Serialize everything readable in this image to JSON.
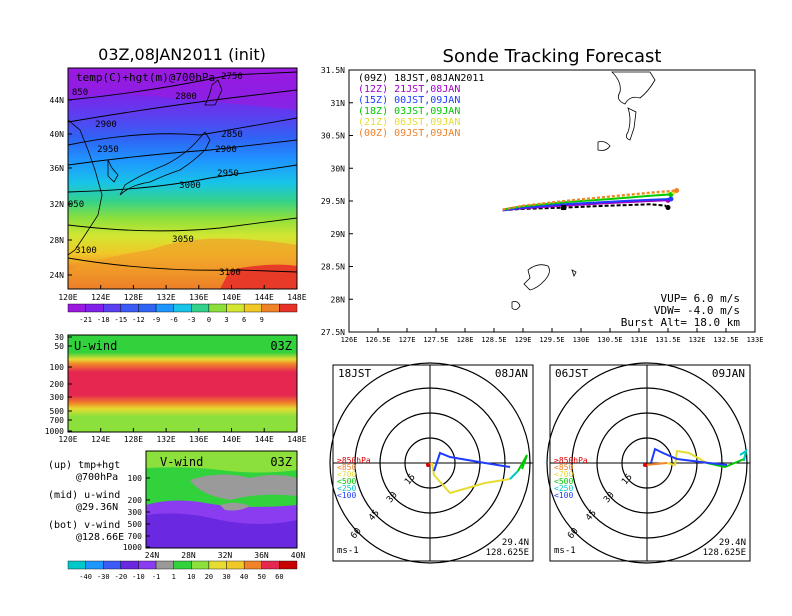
{
  "left_top": {
    "title": "03Z,08JAN2011 (init)",
    "label": "temp(C)+hgt(m)@700hPa",
    "lat_ticks": [
      "44N",
      "40N",
      "36N",
      "32N",
      "28N",
      "24N"
    ],
    "lon_ticks": [
      "120E",
      "124E",
      "128E",
      "132E",
      "136E",
      "140E",
      "144E",
      "148E"
    ],
    "contour_labels": [
      "2750",
      "2800",
      "2850",
      "2900",
      "2950",
      "3000",
      "3050",
      "3100",
      "2900",
      "2950",
      "3100",
      "850",
      "050"
    ],
    "colorbar_labels": [
      "-21",
      "-18",
      "-15",
      "-12",
      "-9",
      "-6",
      "-3",
      "0",
      "3",
      "6",
      "9"
    ]
  },
  "left_mid": {
    "label": "U-wind",
    "time": "03Z",
    "p_ticks": [
      "30",
      "50",
      "100",
      "200",
      "300",
      "500",
      "700",
      "1000"
    ],
    "lon_ticks": [
      "120E",
      "124E",
      "128E",
      "132E",
      "136E",
      "140E",
      "144E",
      "148E"
    ]
  },
  "left_bot": {
    "label": "V-wind",
    "time": "03Z",
    "p_ticks": [
      "100",
      "200",
      "300",
      "500",
      "700",
      "1000"
    ],
    "lat_ticks": [
      "24N",
      "28N",
      "32N",
      "36N",
      "40N"
    ],
    "colorbar_labels": [
      "-40",
      "-30",
      "-20",
      "-10",
      "-1",
      "1",
      "10",
      "20",
      "30",
      "40",
      "50",
      "60"
    ]
  },
  "legend_notes": [
    {
      "a": "(up) tmp+hgt",
      "b": "@700hPa"
    },
    {
      "a": "(mid) u-wind",
      "b": "@29.36N"
    },
    {
      "a": "(bot) v-wind",
      "b": "@128.66E"
    }
  ],
  "track": {
    "title": "Sonde Tracking Forecast",
    "lat_ticks": [
      "31.5N",
      "31N",
      "30.5N",
      "30N",
      "29.5N",
      "29N",
      "28.5N",
      "28N",
      "27.5N"
    ],
    "lon_ticks": [
      "126E",
      "126.5E",
      "127E",
      "127.5E",
      "128E",
      "128.5E",
      "129E",
      "129.5E",
      "130E",
      "130.5E",
      "131E",
      "131.5E",
      "132E",
      "132.5E",
      "133E"
    ],
    "params": {
      "vup": "VUP= 6.0 m/s",
      "vdw": "VDW= -4.0 m/s",
      "burst": "Burst Alt= 18.0 km"
    }
  },
  "chart_data": {
    "type": "line",
    "title": "Sonde Tracking Forecast",
    "xlim": [
      126,
      133
    ],
    "ylim": [
      27.5,
      31.5
    ],
    "series": [
      {
        "name": "(09Z)  18JST,08JAN2011",
        "color": "#000000",
        "x": [
          128.65,
          129.0,
          129.7,
          130.5,
          131.2,
          131.45,
          131.5
        ],
        "y": [
          29.36,
          29.38,
          29.4,
          29.43,
          29.45,
          29.43,
          29.4
        ]
      },
      {
        "name": "(12Z)  21JST,08JAN",
        "color": "#a000c8",
        "x": [
          128.65,
          129.0,
          129.7,
          130.5,
          131.2,
          131.5
        ],
        "y": [
          29.36,
          29.39,
          29.43,
          29.47,
          29.5,
          29.51
        ]
      },
      {
        "name": "(15Z)  00JST,09JAN",
        "color": "#1e3cff",
        "x": [
          128.65,
          129.0,
          129.7,
          130.5,
          131.2,
          131.55
        ],
        "y": [
          29.36,
          29.4,
          29.45,
          29.49,
          29.52,
          29.53
        ]
      },
      {
        "name": "(18Z)  03JST,09JAN",
        "color": "#00c800",
        "x": [
          128.65,
          129.0,
          129.7,
          130.5,
          131.2,
          131.55
        ],
        "y": [
          29.37,
          29.42,
          29.48,
          29.53,
          29.58,
          29.6
        ]
      },
      {
        "name": "(21Z)  06JST,09JAN",
        "color": "#e6dc32",
        "x": [
          128.65,
          129.0,
          129.7,
          130.5,
          131.2,
          131.6
        ],
        "y": [
          29.37,
          29.43,
          29.5,
          29.56,
          29.62,
          29.64
        ]
      },
      {
        "name": "(00Z)  09JST,09JAN",
        "color": "#f08228",
        "x": [
          128.65,
          129.0,
          129.7,
          130.5,
          131.2,
          131.65
        ],
        "y": [
          29.37,
          29.43,
          29.5,
          29.57,
          29.63,
          29.66
        ]
      }
    ]
  },
  "hodo_left": {
    "time_left": "18JST",
    "time_right": "08JAN",
    "rings": [
      "15",
      "30",
      "45",
      "60"
    ],
    "legend": [
      {
        "t": "≥850hPa",
        "c": "#e00000"
      },
      {
        "t": "<850",
        "c": "#f08228"
      },
      {
        "t": "<700",
        "c": "#e6dc32"
      },
      {
        "t": "<500",
        "c": "#00c800"
      },
      {
        "t": "<250",
        "c": "#00c8c8"
      },
      {
        "t": "<100",
        "c": "#1e3cff"
      }
    ],
    "unit": "ms-1",
    "lat": "29.4N",
    "lon": "128.625E"
  },
  "hodo_right": {
    "time_left": "06JST",
    "time_right": "09JAN",
    "rings": [
      "15",
      "30",
      "45",
      "60"
    ],
    "legend": [
      {
        "t": "≥850hPa",
        "c": "#e00000"
      },
      {
        "t": "<850",
        "c": "#f08228"
      },
      {
        "t": "<700",
        "c": "#e6dc32"
      },
      {
        "t": "<500",
        "c": "#00c800"
      },
      {
        "t": "<250",
        "c": "#00c8c8"
      },
      {
        "t": "<100",
        "c": "#1e3cff"
      }
    ],
    "unit": "ms-1",
    "lat": "29.4N",
    "lon": "128.625E"
  }
}
